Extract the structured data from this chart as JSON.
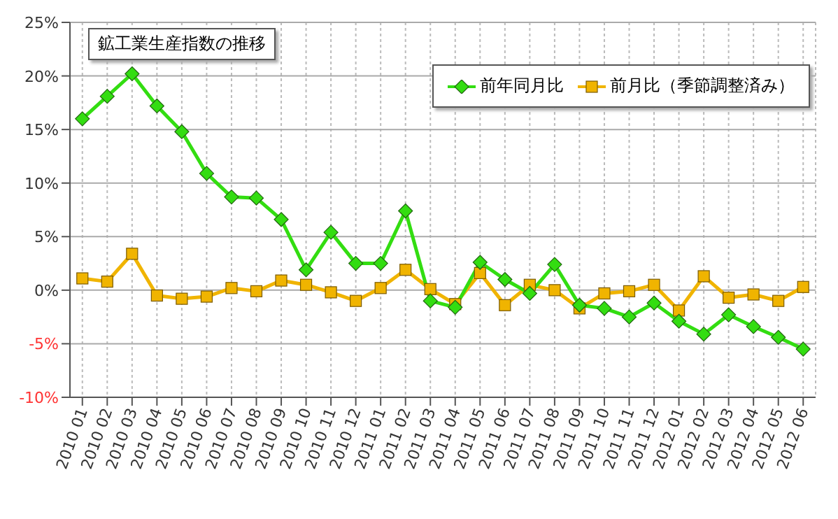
{
  "chart_data": {
    "type": "line",
    "title": "鉱工業生産指数の推移",
    "categories": [
      "2010 01",
      "2010 02",
      "2010 03",
      "2010 04",
      "2010 05",
      "2010 06",
      "2010 07",
      "2010 08",
      "2010 09",
      "2010 10",
      "2010 11",
      "2010 12",
      "2011 01",
      "2011 02",
      "2011 03",
      "2011 04",
      "2011 05",
      "2011 06",
      "2011 07",
      "2011 08",
      "2011 09",
      "2011 10",
      "2011 11",
      "2011 12",
      "2012 01",
      "2012 02",
      "2012 03",
      "2012 04",
      "2012 05",
      "2012 06"
    ],
    "series": [
      {
        "name": "前年同月比",
        "color": "#33dd11",
        "marker": "diamond",
        "values": [
          16.0,
          18.1,
          20.2,
          17.2,
          14.8,
          10.9,
          8.7,
          8.6,
          6.6,
          1.9,
          5.4,
          2.5,
          2.5,
          7.4,
          -1.0,
          -1.6,
          2.6,
          1.0,
          -0.3,
          2.4,
          -1.4,
          -1.7,
          -2.5,
          -1.2,
          -2.9,
          -4.1,
          -2.3,
          -3.4,
          -4.4,
          -5.5
        ]
      },
      {
        "name": "前月比（季節調整済み）",
        "color": "#f0b400",
        "marker": "square",
        "values": [
          1.1,
          0.8,
          3.4,
          -0.5,
          -0.8,
          -0.6,
          0.2,
          -0.1,
          0.9,
          0.5,
          -0.2,
          -1.0,
          0.2,
          1.9,
          0.1,
          -1.3,
          1.6,
          -1.4,
          0.5,
          0.0,
          -1.7,
          -0.3,
          -0.1,
          0.5,
          -1.9,
          1.3,
          -0.7,
          -0.4,
          -1.0,
          0.3
        ]
      }
    ],
    "ylim": [
      -10,
      25
    ],
    "yticks": [
      {
        "value": -10,
        "label": "-10%"
      },
      {
        "value": -5,
        "label": "-5%"
      },
      {
        "value": 0,
        "label": "0%"
      },
      {
        "value": 5,
        "label": "5%"
      },
      {
        "value": 10,
        "label": "10%"
      },
      {
        "value": 15,
        "label": "15%"
      },
      {
        "value": 20,
        "label": "20%"
      },
      {
        "value": 25,
        "label": "25%"
      }
    ],
    "grid": true,
    "legend": "top right",
    "line_style": "solid"
  }
}
